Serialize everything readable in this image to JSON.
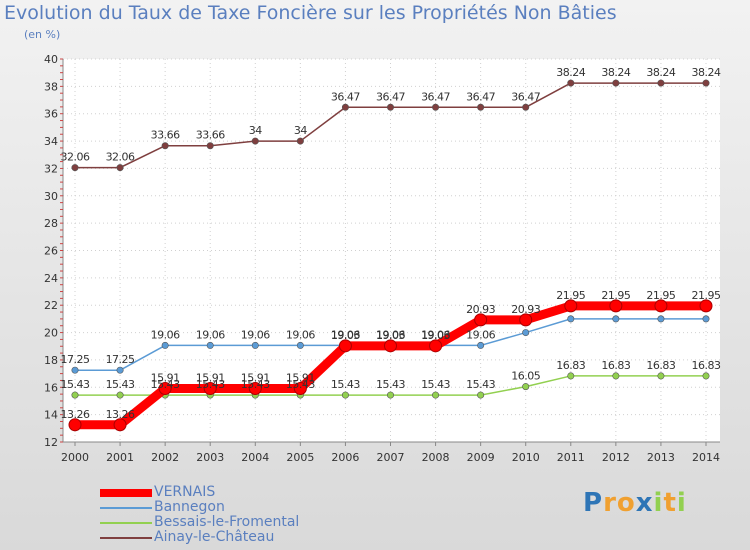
{
  "chart_data": {
    "type": "line",
    "title": "Evolution du Taux de Taxe Foncière sur les Propriétés Non Bâties",
    "subtitle": "(en %)",
    "x": [
      "2000",
      "2001",
      "2002",
      "2003",
      "2004",
      "2005",
      "2006",
      "2007",
      "2008",
      "2009",
      "2010",
      "2011",
      "2012",
      "2013",
      "2014"
    ],
    "ylim": [
      12,
      40
    ],
    "yticks": [
      12,
      14,
      16,
      18,
      20,
      22,
      24,
      26,
      28,
      30,
      32,
      34,
      36,
      38,
      40
    ],
    "grid": true,
    "legend_position": "bottom-left",
    "series": [
      {
        "name": "VERNAIS",
        "color": "#ff0000",
        "values": [
          13.26,
          13.26,
          15.91,
          15.91,
          15.91,
          15.91,
          19.03,
          19.03,
          19.03,
          20.93,
          20.93,
          21.95,
          21.95,
          21.95,
          21.95
        ],
        "labels": [
          "13.26",
          "13.26",
          "15.91",
          "15.91",
          "15.91",
          "15.91",
          "19.03",
          "19.03",
          "19.03",
          "20.93",
          "20.93",
          "21.95",
          "21.95",
          "21.95",
          "21.95"
        ]
      },
      {
        "name": "Bannegon",
        "color": "#5b9bd5",
        "values": [
          17.25,
          17.25,
          19.06,
          19.06,
          19.06,
          19.06,
          19.06,
          19.06,
          19.06,
          19.06,
          20.0,
          21.0,
          21.0,
          21.0,
          21.0
        ],
        "labels": [
          "17.25",
          "17.25",
          "19.06",
          "19.06",
          "19.06",
          "19.06",
          "19.06",
          "19.06",
          "19.06",
          "19.06",
          "",
          "",
          "",
          "",
          ""
        ]
      },
      {
        "name": "Bessais-le-Fromental",
        "color": "#92d050",
        "values": [
          15.43,
          15.43,
          15.43,
          15.43,
          15.43,
          15.43,
          15.43,
          15.43,
          15.43,
          15.43,
          16.05,
          16.83,
          16.83,
          16.83,
          16.83
        ],
        "labels": [
          "15.43",
          "15.43",
          "15.43",
          "15.43",
          "15.43",
          "15.43",
          "15.43",
          "15.43",
          "15.43",
          "15.43",
          "16.05",
          "16.83",
          "16.83",
          "16.83",
          "16.83"
        ]
      },
      {
        "name": "Ainay-le-Château",
        "color": "#7f3f3f",
        "values": [
          32.06,
          32.06,
          33.66,
          33.66,
          34,
          34,
          36.47,
          36.47,
          36.47,
          36.47,
          36.47,
          38.24,
          38.24,
          38.24,
          38.24
        ],
        "labels": [
          "32.06",
          "32.06",
          "33.66",
          "33.66",
          "34",
          "34",
          "36.47",
          "36.47",
          "36.47",
          "36.47",
          "36.47",
          "38.24",
          "38.24",
          "38.24",
          "38.24"
        ]
      }
    ]
  },
  "logo": {
    "letters": [
      "P",
      "r",
      "o",
      "x",
      "i",
      "t",
      "i"
    ],
    "colors": [
      "#2e75b6",
      "#f0a030",
      "#f0a030",
      "#2e75b6",
      "#92d050",
      "#f0a030",
      "#92d050"
    ]
  }
}
